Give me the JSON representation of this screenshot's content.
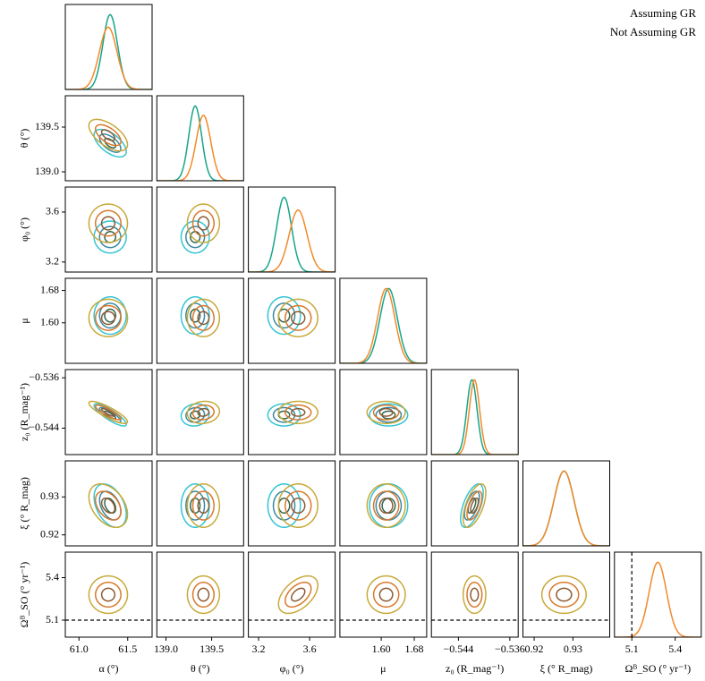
{
  "chart_data": {
    "type": "corner",
    "parameters": [
      {
        "label": "α (°)",
        "lim": [
          60.86,
          61.75
        ],
        "ticks": [
          {
            "value": 61,
            "label": "61.0"
          },
          61.5
        ]
      },
      {
        "label": "θ (°)",
        "lim": [
          138.9,
          139.85
        ],
        "ticks": [
          {
            "value": 139,
            "label": "139.0"
          },
          139.5
        ]
      },
      {
        "label": "φ₀ (°)",
        "lim": [
          3.12,
          3.8
        ],
        "ticks": [
          3.2,
          3.6
        ]
      },
      {
        "label": "μ",
        "lim": [
          1.5,
          1.71
        ],
        "ticks": [
          {
            "value": 1.6,
            "label": "1.60"
          },
          1.68
        ]
      },
      {
        "label": "z₀ (R_mag⁻¹)",
        "lim": [
          -0.5482,
          -0.5347
        ],
        "ticks": [
          {
            "value": -0.544,
            "label": "−0.544"
          },
          {
            "value": -0.536,
            "label": "−0.536"
          }
        ]
      },
      {
        "label": "ξ (° R_mag)",
        "lim": [
          0.9171,
          0.9395
        ],
        "ticks": [
          0.92,
          0.93
        ]
      },
      {
        "label": "Ωᴮ_SO (° yr⁻¹)",
        "lim": [
          4.98,
          5.58
        ],
        "ticks": [
          5.1,
          5.4
        ],
        "reference_value": 5.1
      }
    ],
    "series": [
      {
        "name": "Assuming GR",
        "color": "#17a589",
        "contour_colors": [
          "#35c4d4",
          "#3a88a0",
          "#2f6650"
        ],
        "means": [
          61.32,
          139.32,
          3.4,
          1.618,
          -0.5419,
          0.9277,
          null
        ],
        "sds": [
          0.075,
          0.07,
          0.058,
          0.021,
          0.0008,
          0.0026,
          null
        ],
        "correlations": [
          {
            "pair": [
              0,
              1
            ],
            "r": -0.6
          },
          {
            "pair": [
              0,
              4
            ],
            "r": -0.85
          },
          {
            "pair": [
              0,
              5
            ],
            "r": -0.4
          },
          {
            "pair": [
              4,
              5
            ],
            "r": 0.6
          },
          {
            "pair": [
              1,
              4
            ],
            "r": 0.1
          }
        ]
      },
      {
        "name": "Not Assuming GR",
        "color": "#f28a2b",
        "contour_colors": [
          "#c7a93a",
          "#d9782a",
          "#8c5a33"
        ],
        "means": [
          61.3,
          139.41,
          3.51,
          1.612,
          -0.5415,
          0.9277,
          5.28
        ],
        "sds": [
          0.09,
          0.08,
          0.07,
          0.021,
          0.0008,
          0.0026,
          0.06
        ],
        "correlations": [
          {
            "pair": [
              0,
              1
            ],
            "r": -0.6
          },
          {
            "pair": [
              0,
              4
            ],
            "r": -0.85
          },
          {
            "pair": [
              0,
              5
            ],
            "r": -0.4
          },
          {
            "pair": [
              4,
              5
            ],
            "r": 0.6
          },
          {
            "pair": [
              1,
              4
            ],
            "r": 0.1
          },
          {
            "pair": [
              2,
              6
            ],
            "r": 0.5
          }
        ]
      }
    ]
  }
}
